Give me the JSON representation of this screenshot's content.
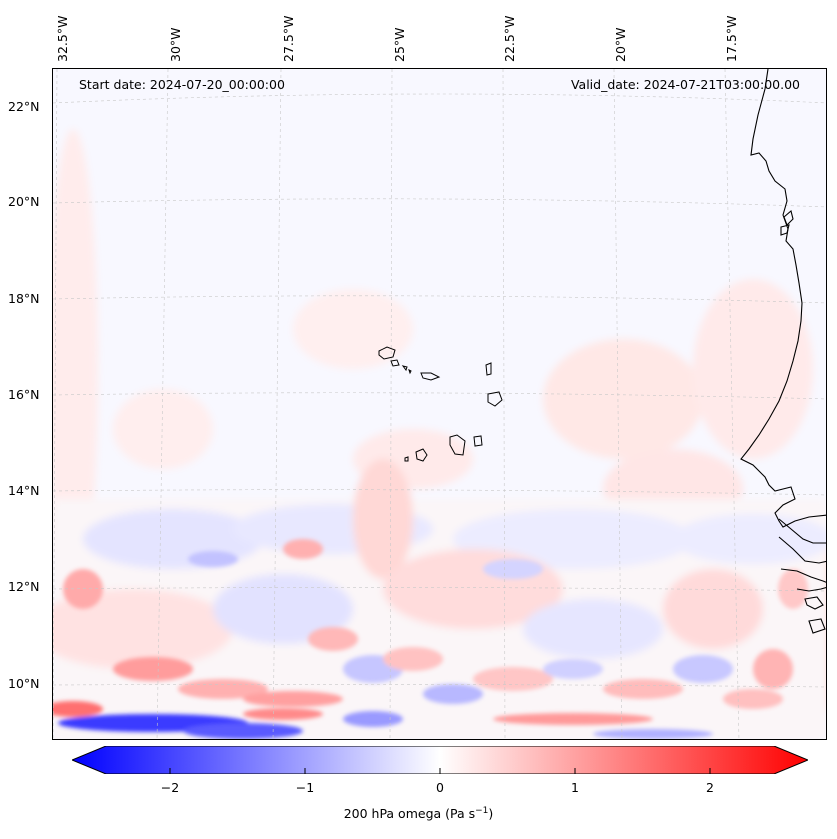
{
  "map": {
    "start_label": "Start date: 2024-07-20_00:00:00",
    "valid_label": "Valid_date: 2024-07-21T03:00:00.00",
    "lon_labels": [
      "32.5°W",
      "30°W",
      "27.5°W",
      "25°W",
      "22.5°W",
      "20°W",
      "17.5°W"
    ],
    "lat_labels": [
      "22°N",
      "20°N",
      "18°N",
      "16°N",
      "14°N",
      "12°N",
      "10°N"
    ],
    "field": "200 hPa omega",
    "region": "Eastern tropical Atlantic, Cape Verde and West African coast"
  },
  "colorbar": {
    "ticks": [
      "−2",
      "−1",
      "0",
      "1",
      "2"
    ],
    "label_main": "200 hPa omega (Pa s",
    "label_exp": "−1",
    "label_close": ")",
    "min": -2.6,
    "max": 2.6,
    "colors": {
      "negative": "#0000ff",
      "zero": "#ffffff",
      "positive": "#ff0000"
    }
  }
}
